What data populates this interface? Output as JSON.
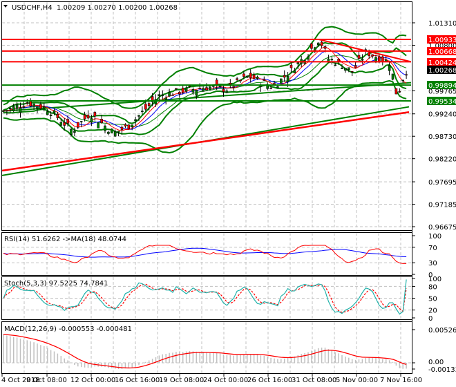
{
  "header": {
    "symbol": "USDCHF,H4",
    "ohlc": "1.00209 1.00270 1.00200 1.00268",
    "collapse_icon": "triangle-down-icon"
  },
  "colors": {
    "bull": "#008000",
    "bear": "#ff0000",
    "band": "#008000",
    "level_red": "#ff0000",
    "level_green": "#008000",
    "rsi": "#ff0000",
    "rsi_ma": "#0000ff",
    "stoch_main": "#20b2aa",
    "stoch_signal": "#ff0000",
    "macd_hist": "#c0c0c0",
    "macd_signal": "#ff0000",
    "grid": "#c0c0c0"
  },
  "price_axis": {
    "ticks": [
      "1.01310",
      "1.00800",
      "0.99765",
      "0.99240",
      "0.98730",
      "0.98220",
      "0.97695",
      "0.97185",
      "0.96675"
    ],
    "labels": [
      {
        "text": "1.00933",
        "bg": "#ff0000",
        "fg": "#ffffff"
      },
      {
        "text": "1.00668",
        "bg": "#ff0000",
        "fg": "#ffffff"
      },
      {
        "text": "1.00424",
        "bg": "#ff0000",
        "fg": "#ffffff"
      },
      {
        "text": "1.00268",
        "bg": "#000000",
        "fg": "#ffffff"
      },
      {
        "text": "0.99894",
        "bg": "#008000",
        "fg": "#ffffff"
      },
      {
        "text": "0.99534",
        "bg": "#008000",
        "fg": "#ffffff"
      }
    ]
  },
  "rsi": {
    "title": "RSI(14) 51.6262  ->MA(18) 48.0744",
    "ticks": [
      "100",
      "70",
      "30",
      "0"
    ]
  },
  "stoch": {
    "title": "Stoch(5,3,3) 97.5225 74.7841",
    "ticks": [
      "100",
      "80",
      "50",
      "20",
      "0"
    ]
  },
  "macd": {
    "title": "MACD(12,26,9) -0.000553 -0.000481",
    "ticks": [
      "0.005262",
      "0.00",
      "-0.001337"
    ]
  },
  "time_axis": {
    "labels": [
      "4 Oct 2018",
      "9 Oct 08:00",
      "12 Oct 00:00",
      "16 Oct 16:00",
      "19 Oct 08:00",
      "24 Oct 00:00",
      "26 Oct 16:00",
      "31 Oct 08:00",
      "5 Nov 00:00",
      "7 Nov 16:00"
    ]
  },
  "chart_data": [
    {
      "type": "candlestick",
      "title": "USDCHF,H4 1.00209 1.00270 1.00200 1.00268",
      "x": [
        "4 Oct 2018",
        "9 Oct 08:00",
        "12 Oct 00:00",
        "16 Oct 16:00",
        "19 Oct 08:00",
        "24 Oct 00:00",
        "26 Oct 16:00",
        "31 Oct 08:00",
        "5 Nov 00:00",
        "7 Nov 16:00"
      ],
      "close_approx": [
        0.993,
        0.994,
        0.992,
        0.991,
        0.9975,
        0.9985,
        1.0025,
        1.008,
        1.004,
        1.00268
      ],
      "last_ohlc": {
        "open": 1.00209,
        "high": 1.0027,
        "low": 1.002,
        "close": 1.00268
      },
      "horizontal_levels": {
        "resistance_red": [
          1.00933,
          1.00668,
          1.00424
        ],
        "support_green": [
          0.99894,
          0.99534
        ]
      },
      "trendline_red_descending": {
        "from": 1.0093,
        "to": 1.0042
      },
      "ylim": [
        0.96675,
        1.0155
      ],
      "yticks": [
        1.0131,
        1.008,
        0.99765,
        0.9924,
        0.9873,
        0.9822,
        0.97695,
        0.97185,
        0.96675
      ],
      "grid": true
    },
    {
      "type": "line",
      "title": "RSI(14) 51.6262 ->MA(18) 48.0744",
      "series": [
        {
          "name": "RSI(14)",
          "last": 51.6262
        },
        {
          "name": "MA(18)",
          "last": 48.0744
        }
      ],
      "ylim": [
        0,
        100
      ],
      "yticks": [
        100,
        70,
        30,
        0
      ]
    },
    {
      "type": "line",
      "title": "Stoch(5,3,3) 97.5225 74.7841",
      "series": [
        {
          "name": "%K",
          "last": 97.5225
        },
        {
          "name": "%D",
          "last": 74.7841
        }
      ],
      "ylim": [
        0,
        100
      ],
      "yticks": [
        100,
        80,
        50,
        20,
        0
      ]
    },
    {
      "type": "bar",
      "title": "MACD(12,26,9) -0.000553 -0.000481",
      "series": [
        {
          "name": "MACD",
          "last": -0.000553
        },
        {
          "name": "Signal",
          "last": -0.000481
        }
      ],
      "ylim": [
        -0.001337,
        0.005262
      ],
      "yticks": [
        0.005262,
        0.0,
        -0.001337
      ]
    }
  ]
}
